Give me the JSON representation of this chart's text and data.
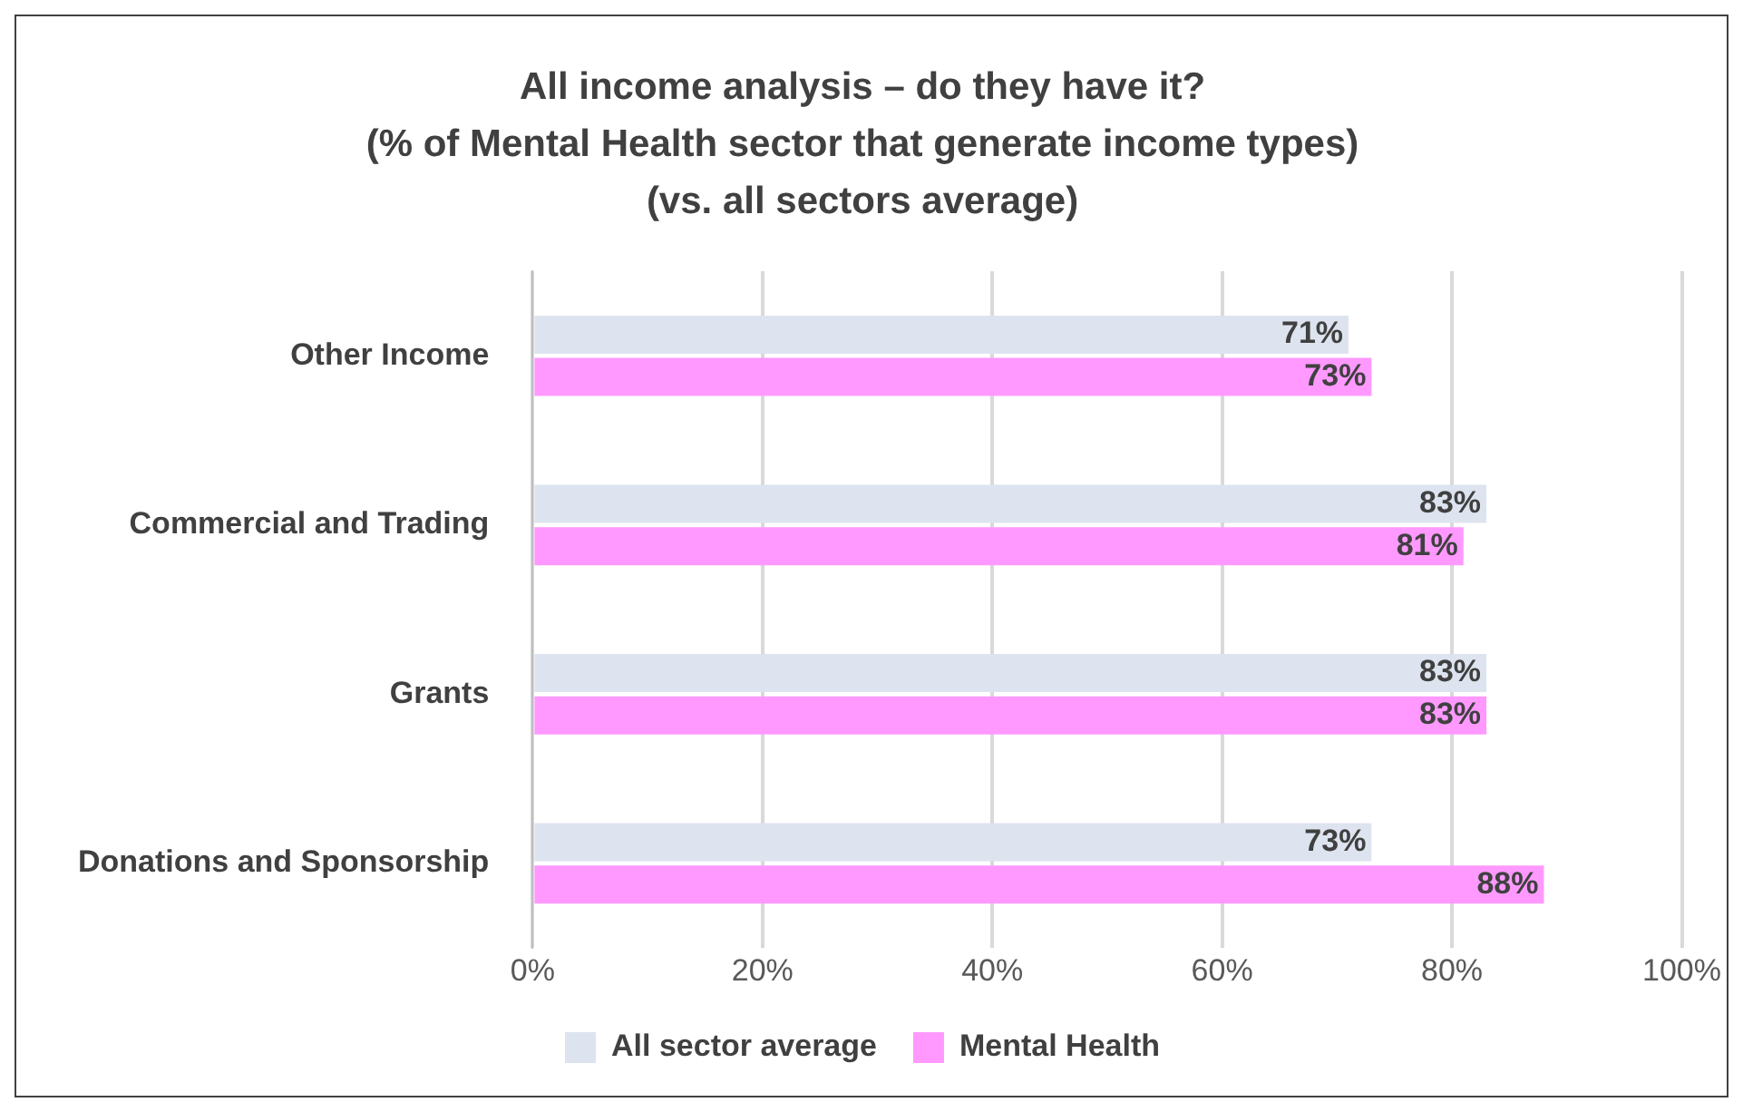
{
  "chart_data": {
    "type": "bar",
    "orientation": "horizontal",
    "title": [
      "All income analysis – do they have it?",
      "(% of Mental Health sector that generate income types)",
      "(vs. all sectors average)"
    ],
    "categories": [
      "Other Income",
      "Commercial and Trading",
      "Grants",
      "Donations and Sponsorship"
    ],
    "series": [
      {
        "name": "All sector average",
        "color": "#dde4ef",
        "values": [
          71,
          83,
          83,
          73
        ],
        "value_labels": [
          "71%",
          "83%",
          "83%",
          "73%"
        ]
      },
      {
        "name": "Mental Health",
        "color": "#ff99ff",
        "values": [
          73,
          81,
          83,
          88
        ],
        "value_labels": [
          "73%",
          "81%",
          "83%",
          "88%"
        ]
      }
    ],
    "xlim": [
      0,
      100
    ],
    "xticks": [
      {
        "value": 0,
        "label": "0%"
      },
      {
        "value": 20,
        "label": "20%"
      },
      {
        "value": 40,
        "label": "40%"
      },
      {
        "value": 60,
        "label": "60%"
      },
      {
        "value": 80,
        "label": "80%"
      },
      {
        "value": 100,
        "label": "100%"
      }
    ],
    "grid": "x",
    "legend": "bottom"
  }
}
